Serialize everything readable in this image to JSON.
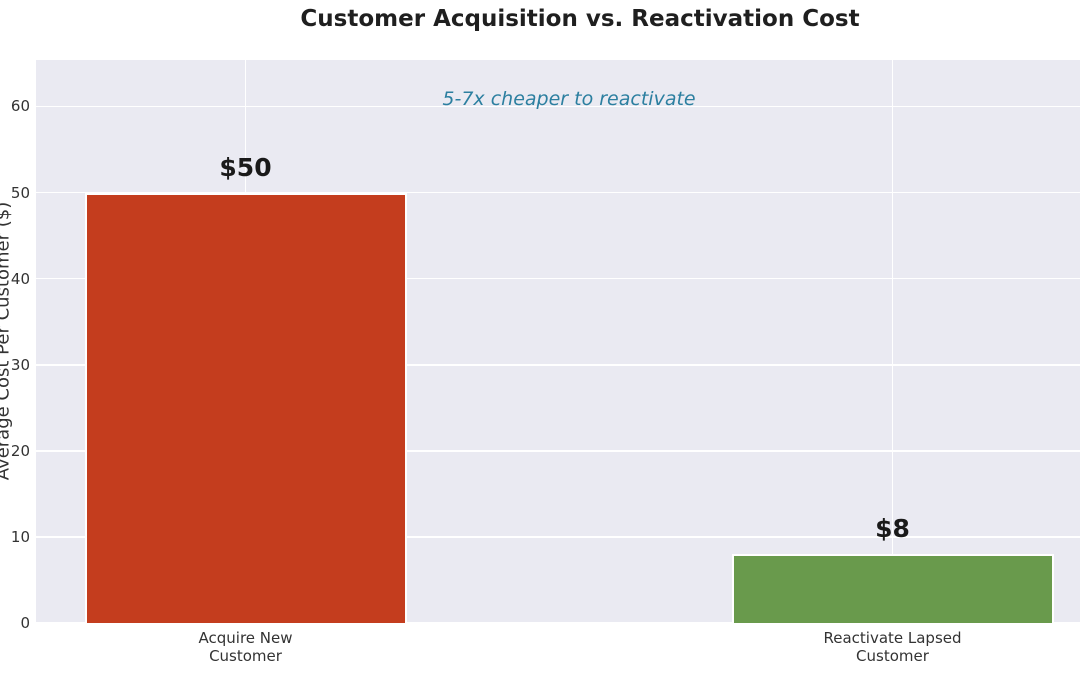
{
  "chart_data": {
    "type": "bar",
    "title": "Customer Acquisition vs. Reactivation Cost",
    "ylabel": "Average Cost Per Customer ($)",
    "xlabel": "",
    "categories": [
      "Acquire New\nCustomer",
      "Reactivate Lapsed\nCustomer"
    ],
    "values": [
      50,
      8
    ],
    "bar_labels": [
      "$50",
      "$8"
    ],
    "bar_colors": [
      "#c43d1e",
      "#699a4c"
    ],
    "annotation": {
      "text": "5-7x cheaper to reactivate",
      "color": "#2c7fa0",
      "y": 60
    },
    "yticks": [
      0,
      10,
      20,
      30,
      40,
      50,
      60
    ],
    "ylim": [
      0,
      65.4
    ],
    "grid": true,
    "legend": false,
    "plot_bg_color": "#eaeaf2",
    "grid_color": "#ffffff",
    "title_color": "#1f1f1f",
    "tick_color": "#333333"
  }
}
